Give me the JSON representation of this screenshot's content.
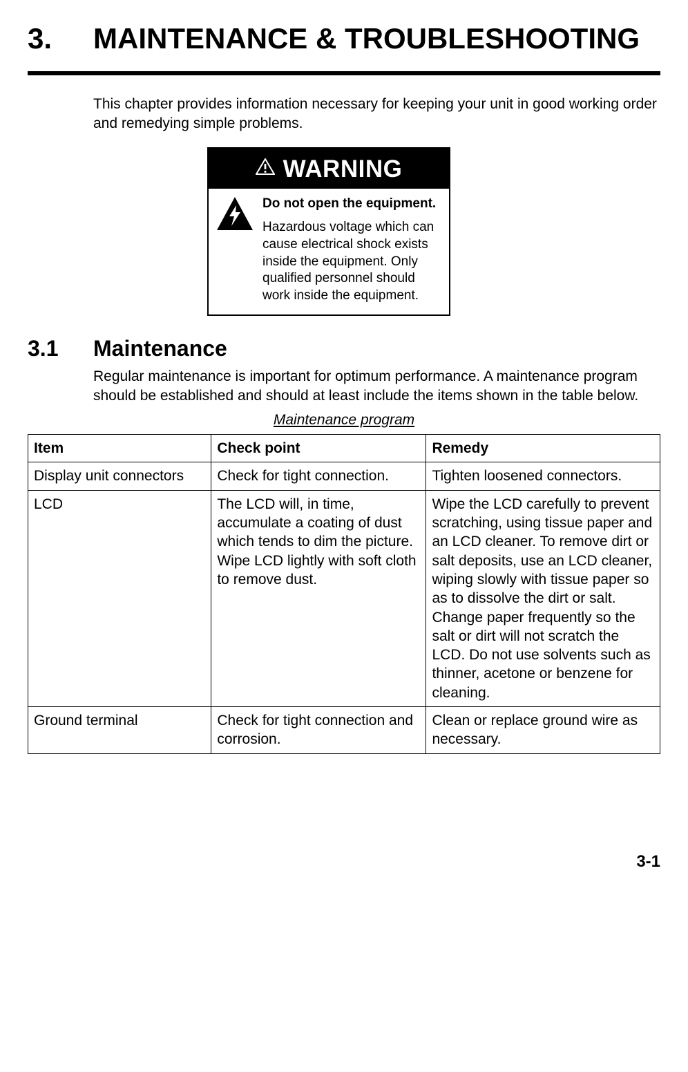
{
  "chapter": {
    "number": "3.",
    "title": "MAINTENANCE & TROUBLESHOOTING"
  },
  "intro_paragraph": "This chapter provides information necessary for keeping your unit in good working order and remedying simple problems.",
  "warning": {
    "label": "WARNING",
    "strong": "Do not open the equipment.",
    "body": "Hazardous voltage which can cause electrical shock exists inside the equipment. Only qualified personnel should work inside the equipment.",
    "header_bg": "#000000",
    "header_fg": "#ffffff",
    "border_color": "#000000"
  },
  "section": {
    "number": "3.1",
    "title": "Maintenance",
    "paragraph": "Regular maintenance is important for optimum performance. A maintenance program should be established and should at least include the items shown in the table below."
  },
  "table": {
    "caption": "Maintenance program",
    "columns": [
      "Item",
      "Check point",
      "Remedy"
    ],
    "column_widths": [
      "29%",
      "34%",
      "37%"
    ],
    "rows": [
      [
        "Display unit connectors",
        "Check for tight connection.",
        "Tighten loosened connectors."
      ],
      [
        "LCD",
        "The LCD will, in time, accumulate a coating of dust which tends to dim the picture. Wipe LCD lightly with soft cloth to remove dust.",
        "Wipe the LCD carefully to prevent scratching, using tissue paper and an LCD cleaner. To remove dirt or salt deposits, use an LCD cleaner, wiping slowly with tissue paper so as to dissolve the dirt or salt. Change paper frequently so the salt or dirt will not scratch the LCD. Do not use solvents such as thinner, acetone or benzene for cleaning."
      ],
      [
        "Ground terminal",
        "Check for tight connection and corrosion.",
        "Clean or replace ground wire as necessary."
      ]
    ]
  },
  "page_number": "3-1",
  "colors": {
    "text": "#000000",
    "background": "#ffffff",
    "rule": "#000000",
    "table_border": "#000000"
  }
}
